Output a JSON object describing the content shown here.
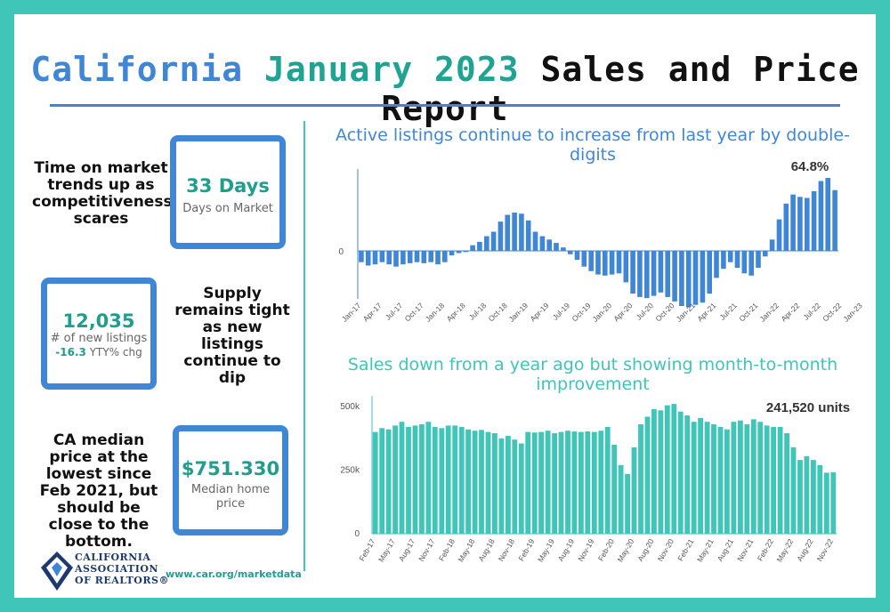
{
  "title": {
    "part1": "California",
    "part2": "January 2023",
    "part3": "Sales and Price Report"
  },
  "notes": {
    "time_on_market": "Time on market trends up as competitiveness scares",
    "supply": "Supply remains tight as new listings continue to dip",
    "median": "CA median price at the lowest since Feb 2021, but should be close to the bottom."
  },
  "stats": {
    "days": {
      "value": "33 Days",
      "label": "Days on Market"
    },
    "listings": {
      "value": "12,035",
      "label": "# of new listings",
      "change": "-16.3",
      "change_suffix": "YTY% chg"
    },
    "price": {
      "value": "$751.330",
      "label": "Median home price"
    }
  },
  "footer": {
    "org": "CALIFORNIA ASSOCIATION OF REALTORS®",
    "org_line1": "CALIFORNIA",
    "org_line2": "ASSOCIATION",
    "org_line3": "OF REALTORS®",
    "url": "www.car.org/marketdata"
  },
  "colors": {
    "blue": "#3f87d6",
    "teal": "#3fc6b8"
  },
  "chart_data": [
    {
      "type": "bar",
      "title": "Active listings continue to increase from last year by double-digits",
      "annotation": "64.8%",
      "ytick_label": "0",
      "ylim": [
        -60,
        80
      ],
      "tick_labels": [
        "Jan-17",
        "Apr-17",
        "Jul-17",
        "Oct-17",
        "Jan-18",
        "Apr-18",
        "Jul-18",
        "Oct-18",
        "Jan-19",
        "Apr-19",
        "Jul-19",
        "Oct-19",
        "Jan-20",
        "Apr-20",
        "Jul-20",
        "Oct-20",
        "Jan-21",
        "Apr-21",
        "Jul-21",
        "Oct-21",
        "Jan-22",
        "Apr-22",
        "Jul-22",
        "Oct-22",
        "Jan-23"
      ],
      "values": [
        -10,
        -13,
        -12,
        -10,
        -12,
        -14,
        -12,
        -11,
        -10,
        -11,
        -10,
        -12,
        -10,
        -4,
        -2,
        -1,
        5,
        8,
        13,
        17,
        26,
        32,
        34,
        33,
        27,
        17,
        13,
        10,
        7,
        3,
        -3,
        -8,
        -14,
        -18,
        -21,
        -22,
        -21,
        -20,
        -28,
        -38,
        -41,
        -42,
        -40,
        -37,
        -41,
        -45,
        -49,
        -50,
        -48,
        -46,
        -38,
        -24,
        -16,
        -10,
        -15,
        -20,
        -22,
        -15,
        -5,
        10,
        28,
        42,
        50,
        48,
        47,
        53,
        62,
        64.8,
        54
      ]
    },
    {
      "type": "bar",
      "title": "Sales down from a year ago but showing month-to-month improvement",
      "annotation": "241,520 units",
      "ytick_labels": [
        "500k",
        "250k",
        "0"
      ],
      "yticks": [
        500000,
        250000,
        0
      ],
      "ylim": [
        0,
        520000
      ],
      "tick_labels": [
        "Feb-17",
        "May-17",
        "Aug-17",
        "Nov-17",
        "Feb-18",
        "May-18",
        "Aug-18",
        "Nov-18",
        "Feb-19",
        "May-19",
        "Aug-19",
        "Nov-19",
        "Feb-20",
        "May-20",
        "Aug-20",
        "Nov-20",
        "Feb-21",
        "May-21",
        "Aug-21",
        "Nov-21",
        "Feb-22",
        "May-22",
        "Aug-22",
        "Nov-22"
      ],
      "values": [
        400000,
        415000,
        410000,
        425000,
        440000,
        420000,
        425000,
        430000,
        440000,
        420000,
        415000,
        425000,
        425000,
        420000,
        410000,
        405000,
        408000,
        400000,
        395000,
        375000,
        385000,
        370000,
        355000,
        400000,
        398000,
        400000,
        405000,
        395000,
        400000,
        405000,
        402000,
        400000,
        402000,
        400000,
        405000,
        420000,
        350000,
        270000,
        235000,
        340000,
        430000,
        460000,
        490000,
        485000,
        505000,
        510000,
        480000,
        465000,
        440000,
        455000,
        440000,
        430000,
        420000,
        410000,
        440000,
        445000,
        430000,
        450000,
        440000,
        425000,
        420000,
        420000,
        395000,
        340000,
        290000,
        305000,
        290000,
        270000,
        240000,
        241520
      ]
    }
  ]
}
